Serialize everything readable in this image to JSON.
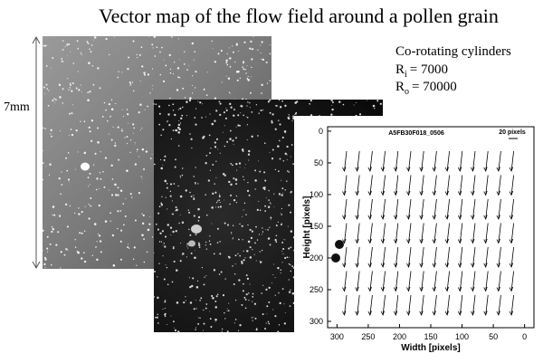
{
  "title": "Vector map of the flow field around a pollen grain",
  "scale_label": "7mm",
  "conditions": {
    "heading": "Co-rotating cylinders",
    "params": [
      {
        "symbol": "R",
        "subscript": "i",
        "value": "= 7000"
      },
      {
        "symbol": "R",
        "subscript": "o",
        "value": "= 70000"
      }
    ]
  },
  "plot": {
    "title": "A5FB30F018_0506",
    "scale_label": "20 pixels",
    "xlabel": "Width [pixels]",
    "ylabel": "Height [pixels]",
    "xlim": [
      315,
      -15
    ],
    "ylim": [
      -7,
      310
    ],
    "xticks": [
      300,
      250,
      200,
      150,
      100,
      50,
      0
    ],
    "yticks": [
      0,
      50,
      100,
      150,
      200,
      250,
      300
    ]
  }
}
